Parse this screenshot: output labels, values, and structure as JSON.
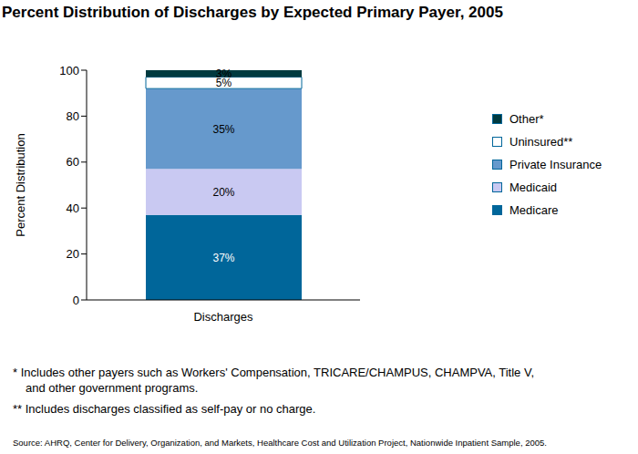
{
  "chart_data": {
    "type": "bar",
    "title": "Percent Distribution of Discharges by Expected Primary Payer, 2005",
    "y_label": "Percent Distribution",
    "categories": [
      "Discharges"
    ],
    "stacked": true,
    "data_labels": true,
    "legend": "right",
    "grid": false,
    "ylim": [
      0,
      100
    ],
    "yticks": [
      0,
      20,
      40,
      60,
      80,
      100
    ],
    "series": [
      {
        "name": "Medicare",
        "color": "#00669a",
        "values": [
          37
        ],
        "value_labels": [
          "37%"
        ]
      },
      {
        "name": "Medicaid",
        "color": "#c9c9f2",
        "values": [
          20
        ],
        "value_labels": [
          "20%"
        ]
      },
      {
        "name": "Private Insurance",
        "color": "#6699cc",
        "values": [
          35
        ],
        "value_labels": [
          "35%"
        ]
      },
      {
        "name": "Uninsured**",
        "color": "#ffffff",
        "values": [
          5
        ],
        "value_labels": [
          "5%"
        ]
      },
      {
        "name": "Other*",
        "color": "#003a3f",
        "values": [
          3
        ],
        "value_labels": [
          "3%"
        ]
      }
    ],
    "footnotes": [
      "*  Includes other payers such as Workers' Compensation, TRICARE/CHAMPUS, CHAMPVA, Title V,",
      "and other government programs.",
      "** Includes discharges classified as self-pay or no charge."
    ],
    "source": "Source:  AHRQ, Center for Delivery, Organization, and Markets, Healthcare Cost and Utilization Project, Nationwide Inpatient Sample, 2005."
  }
}
